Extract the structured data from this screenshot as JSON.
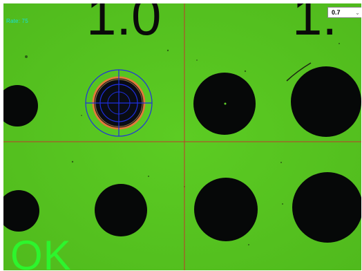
{
  "overlay": {
    "rate_text": "Rate: 75",
    "zoom_selected": "0.7",
    "zoom_arrow_icon": "chevron-down-icon",
    "status_text": "OK",
    "status_color": "#2df52d"
  },
  "image": {
    "scale_digits": [
      "1.0",
      "1."
    ],
    "background_color": "#59c722",
    "crosshair_color": "#c0392b",
    "target_ring_color": "#1f2fe0",
    "edge_highlight_color": "#e07a3a"
  }
}
